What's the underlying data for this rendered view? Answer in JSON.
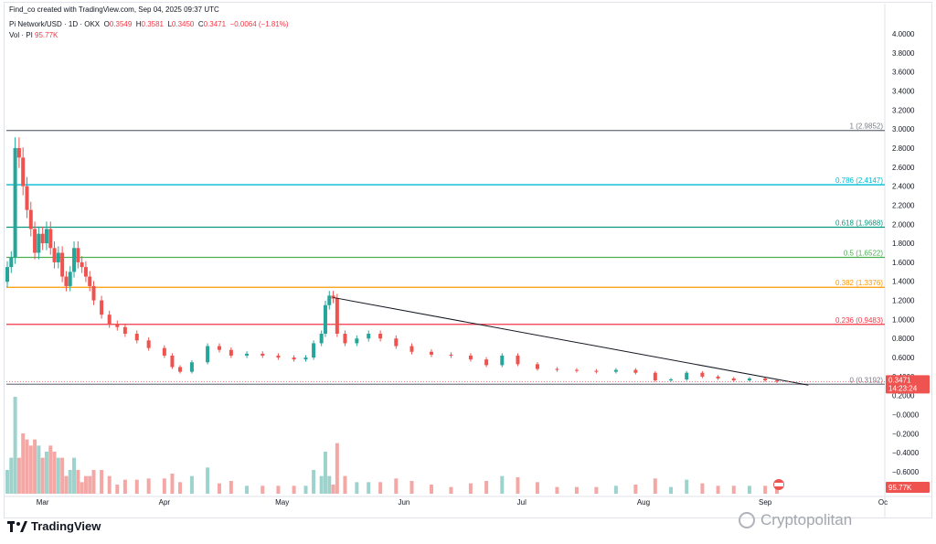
{
  "header": {
    "credit": "Find_co created with TradingView.com, Sep 04, 2025 09:37 UTC",
    "symbol": "Pi Network/USD · 1D · OKX",
    "o_label": "O",
    "o_value": "0.3549",
    "h_label": "H",
    "h_value": "0.3581",
    "l_label": "L",
    "l_value": "0.3450",
    "c_label": "C",
    "c_value": "0.3471",
    "change": "−0.0064 (−1.81%)",
    "vol_label": "Vol · PI",
    "vol_value": "95.77K"
  },
  "branding": {
    "logo_text": "TradingView",
    "watermark": "Cryptopolitan"
  },
  "colors": {
    "up": "#26a69a",
    "down": "#ef5350",
    "vol_up": "#9ed3cd",
    "vol_down": "#f4a8a6",
    "fib_1": "#787b86",
    "fib_0786": "#00bcd4",
    "fib_0618": "#089981",
    "fib_05": "#4caf50",
    "fib_0382": "#ff9800",
    "fib_0236": "#f23645",
    "fib_0": "#787b86",
    "trendline": "#131722"
  },
  "chart_data": {
    "type": "candlestick",
    "y_ticks": [
      "4.0000",
      "3.8000",
      "3.6000",
      "3.4000",
      "3.2000",
      "3.0000",
      "2.8000",
      "2.6000",
      "2.4000",
      "2.2000",
      "2.0000",
      "1.8000",
      "1.6000",
      "1.4000",
      "1.2000",
      "1.0000",
      "0.8000",
      "0.6000",
      "0.4000",
      "0.2000",
      "−0.0000",
      "−0.2000",
      "−0.4000",
      "−0.6000"
    ],
    "y_tick_values": [
      4.0,
      3.8,
      3.6,
      3.4,
      3.2,
      3.0,
      2.8,
      2.6,
      2.4,
      2.2,
      2.0,
      1.8,
      1.6,
      1.4,
      1.2,
      1.0,
      0.8,
      0.6,
      0.4,
      0.2,
      0,
      -0.2,
      -0.4,
      -0.6
    ],
    "x_ticks": [
      "Mar",
      "Apr",
      "May",
      "Jun",
      "Jul",
      "Aug",
      "Sep",
      "Oc"
    ],
    "x_tick_dates": [
      "2025-03-01",
      "2025-04-01",
      "2025-05-01",
      "2025-06-01",
      "2025-07-01",
      "2025-08-01",
      "2025-09-01",
      "2025-10-01"
    ],
    "fib_levels": [
      {
        "label": "1 (2.9852)",
        "value": 2.9852
      },
      {
        "label": "0.786 (2.4147)",
        "value": 2.4147
      },
      {
        "label": "0.618 (1.9688)",
        "value": 1.9688
      },
      {
        "label": "0.5 (1.6522)",
        "value": 1.6522
      },
      {
        "label": "0.382 (1.3376)",
        "value": 1.3376
      },
      {
        "label": "0.236 (0.9483)",
        "value": 0.9483
      },
      {
        "label": "0 (0.3192)",
        "value": 0.3192
      }
    ],
    "last_price": "0.3471",
    "last_price_value": 0.3471,
    "countdown": "14:23:24",
    "last_volume": "95.77K",
    "trendline": [
      {
        "date": "2025-05-14",
        "value": 1.23
      },
      {
        "date": "2025-09-12",
        "value": 0.31
      }
    ],
    "closes": [
      {
        "date": "2025-02-20",
        "value": 1.55
      },
      {
        "date": "2025-02-21",
        "value": 1.65
      },
      {
        "date": "2025-02-22",
        "value": 2.8
      },
      {
        "date": "2025-02-23",
        "value": 2.7
      },
      {
        "date": "2025-02-24",
        "value": 2.4
      },
      {
        "date": "2025-02-25",
        "value": 2.15
      },
      {
        "date": "2025-02-26",
        "value": 1.95
      },
      {
        "date": "2025-02-27",
        "value": 1.7
      },
      {
        "date": "2025-02-28",
        "value": 1.9
      },
      {
        "date": "2025-03-01",
        "value": 1.8
      },
      {
        "date": "2025-03-02",
        "value": 1.95
      },
      {
        "date": "2025-03-03",
        "value": 1.75
      },
      {
        "date": "2025-03-04",
        "value": 1.6
      },
      {
        "date": "2025-03-05",
        "value": 1.7
      },
      {
        "date": "2025-03-06",
        "value": 1.45
      },
      {
        "date": "2025-03-07",
        "value": 1.35
      },
      {
        "date": "2025-03-08",
        "value": 1.5
      },
      {
        "date": "2025-03-09",
        "value": 1.75
      },
      {
        "date": "2025-03-10",
        "value": 1.6
      },
      {
        "date": "2025-03-11",
        "value": 1.55
      },
      {
        "date": "2025-03-12",
        "value": 1.45
      },
      {
        "date": "2025-03-13",
        "value": 1.35
      },
      {
        "date": "2025-03-14",
        "value": 1.2
      },
      {
        "date": "2025-03-16",
        "value": 1.05
      },
      {
        "date": "2025-03-18",
        "value": 0.95
      },
      {
        "date": "2025-03-20",
        "value": 0.92
      },
      {
        "date": "2025-03-22",
        "value": 0.85
      },
      {
        "date": "2025-03-25",
        "value": 0.78
      },
      {
        "date": "2025-03-28",
        "value": 0.7
      },
      {
        "date": "2025-04-01",
        "value": 0.62
      },
      {
        "date": "2025-04-03",
        "value": 0.5
      },
      {
        "date": "2025-04-05",
        "value": 0.45
      },
      {
        "date": "2025-04-08",
        "value": 0.55
      },
      {
        "date": "2025-04-12",
        "value": 0.72
      },
      {
        "date": "2025-04-15",
        "value": 0.68
      },
      {
        "date": "2025-04-18",
        "value": 0.62
      },
      {
        "date": "2025-04-22",
        "value": 0.64
      },
      {
        "date": "2025-04-26",
        "value": 0.62
      },
      {
        "date": "2025-04-30",
        "value": 0.6
      },
      {
        "date": "2025-05-04",
        "value": 0.58
      },
      {
        "date": "2025-05-07",
        "value": 0.6
      },
      {
        "date": "2025-05-09",
        "value": 0.75
      },
      {
        "date": "2025-05-11",
        "value": 0.85
      },
      {
        "date": "2025-05-12",
        "value": 1.15
      },
      {
        "date": "2025-05-13",
        "value": 1.25
      },
      {
        "date": "2025-05-14",
        "value": 1.22
      },
      {
        "date": "2025-05-15",
        "value": 0.85
      },
      {
        "date": "2025-05-17",
        "value": 0.75
      },
      {
        "date": "2025-05-20",
        "value": 0.8
      },
      {
        "date": "2025-05-23",
        "value": 0.85
      },
      {
        "date": "2025-05-26",
        "value": 0.8
      },
      {
        "date": "2025-05-30",
        "value": 0.72
      },
      {
        "date": "2025-06-03",
        "value": 0.66
      },
      {
        "date": "2025-06-08",
        "value": 0.63
      },
      {
        "date": "2025-06-13",
        "value": 0.62
      },
      {
        "date": "2025-06-18",
        "value": 0.58
      },
      {
        "date": "2025-06-22",
        "value": 0.52
      },
      {
        "date": "2025-06-26",
        "value": 0.62
      },
      {
        "date": "2025-06-30",
        "value": 0.53
      },
      {
        "date": "2025-07-05",
        "value": 0.48
      },
      {
        "date": "2025-07-10",
        "value": 0.47
      },
      {
        "date": "2025-07-15",
        "value": 0.46
      },
      {
        "date": "2025-07-20",
        "value": 0.45
      },
      {
        "date": "2025-07-25",
        "value": 0.47
      },
      {
        "date": "2025-07-30",
        "value": 0.44
      },
      {
        "date": "2025-08-04",
        "value": 0.36
      },
      {
        "date": "2025-08-08",
        "value": 0.37
      },
      {
        "date": "2025-08-12",
        "value": 0.44
      },
      {
        "date": "2025-08-16",
        "value": 0.4
      },
      {
        "date": "2025-08-20",
        "value": 0.38
      },
      {
        "date": "2025-08-24",
        "value": 0.36
      },
      {
        "date": "2025-08-28",
        "value": 0.38
      },
      {
        "date": "2025-09-01",
        "value": 0.36
      },
      {
        "date": "2025-09-04",
        "value": 0.3471
      }
    ],
    "volume_scale": [
      "high",
      "low"
    ]
  }
}
